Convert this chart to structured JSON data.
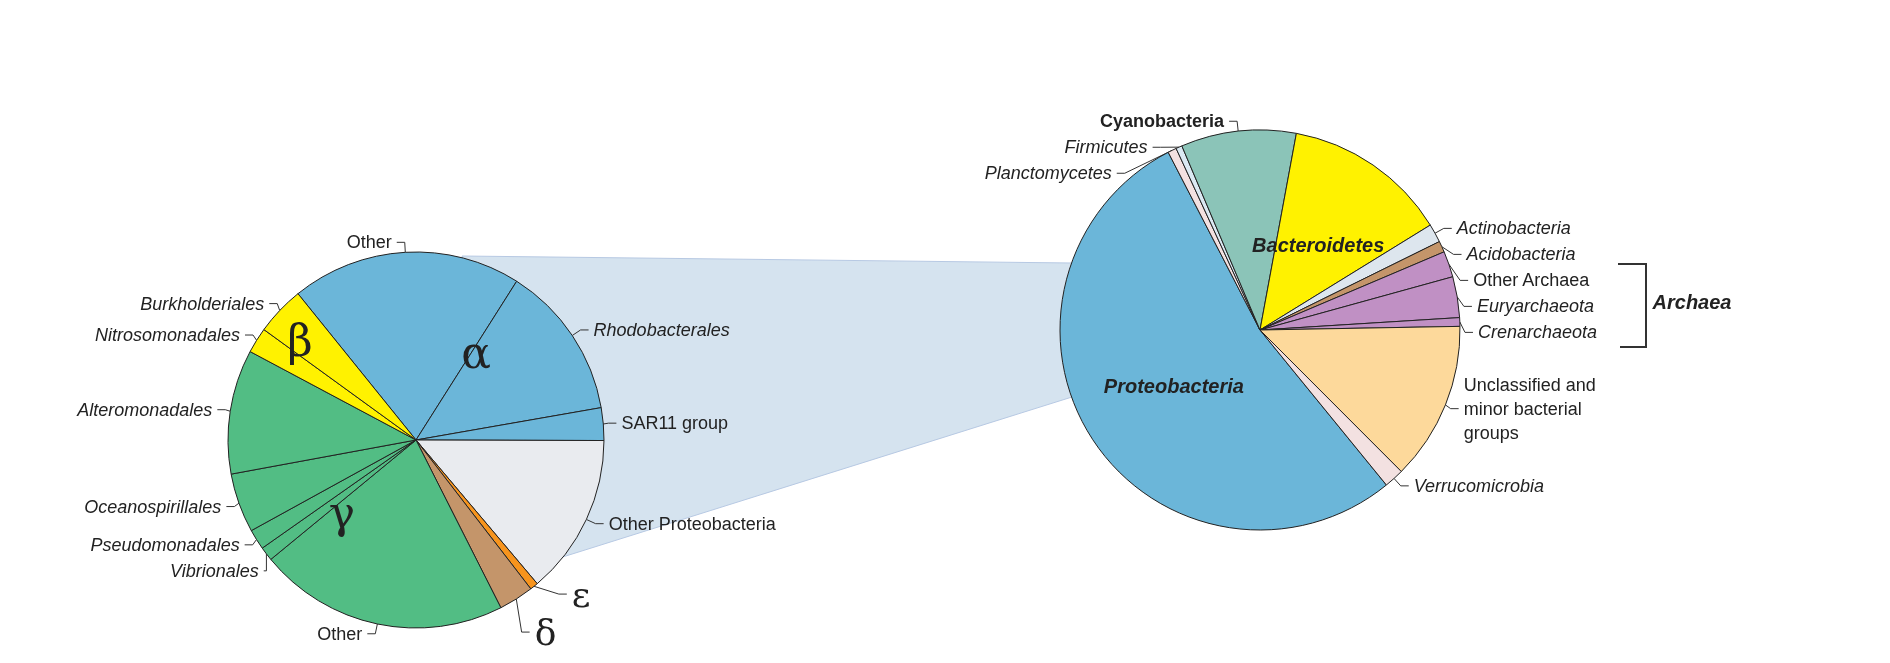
{
  "chart_data": [
    {
      "type": "pie",
      "categories": [
        "Other",
        "Rhodobacterales",
        "SAR11 group",
        "Other Proteobacteria",
        "ε",
        "δ",
        "Other",
        "Vibrionales",
        "Pseudomonadales",
        "Oceanospirillales",
        "Alteromonadales",
        "Nitrosomonadales",
        "Burkholderiales"
      ],
      "values": [
        19.8,
        13.25,
        2.8,
        13.8,
        0.7,
        3.0,
        21.5,
        1.2,
        1.75,
        5.1,
        10.7,
        2.2,
        4.2
      ],
      "colors": [
        "#6bb6d9",
        "#6bb6d9",
        "#6bb6d9",
        "#e9ebef",
        "#f7941d",
        "#c4956a",
        "#52bd84",
        "#52bd84",
        "#52bd84",
        "#52bd84",
        "#52bd84",
        "#fff200",
        "#fff200"
      ],
      "annotations": [
        "α",
        "β",
        "γ"
      ]
    },
    {
      "type": "pie",
      "categories": [
        "Proteobacteria",
        "Planctomycetes",
        "Firmicutes",
        "Cyanobacteria",
        "Bacteroidetes",
        "Actinobacteria",
        "Acidobacteria",
        "Other Archaea",
        "Euryarchaeota",
        "Crenarchaeota",
        "Unclassified and minor bacterial groups",
        "Verrucomicrobia"
      ],
      "values": [
        53.3,
        0.7,
        0.5,
        9.3,
        13.3,
        1.5,
        0.9,
        2.1,
        3.3,
        0.7,
        12.8,
        1.6
      ],
      "colors": [
        "#6bb6d9",
        "#f3e1e1",
        "#dbe9f3",
        "#8bc4b8",
        "#fff200",
        "#dde6ee",
        "#c4956a",
        "#c090c4",
        "#c090c4",
        "#c090c4",
        "#fdd99b",
        "#f3e1e1"
      ],
      "annotations": [
        "Archaea"
      ]
    }
  ]
}
